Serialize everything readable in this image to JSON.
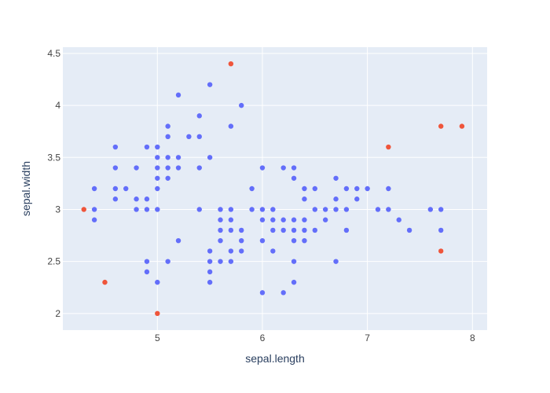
{
  "colors": {
    "plot_background": "#e5ecf6",
    "grid": "#ffffff",
    "inlier": "#636efa",
    "outlier": "#ef553b"
  },
  "chart_data": {
    "type": "scatter",
    "xlabel": "sepal.length",
    "ylabel": "sepal.width",
    "xlim": [
      4.1,
      8.14
    ],
    "ylim": [
      1.84,
      4.56
    ],
    "xticks": [
      5,
      6,
      7,
      8
    ],
    "yticks": [
      2,
      2.5,
      3,
      3.5,
      4,
      4.5
    ],
    "grid": true,
    "legend": "none",
    "series": [
      {
        "color": "#636efa",
        "points": [
          [
            4.4,
            3.2
          ],
          [
            4.4,
            3.0
          ],
          [
            4.4,
            2.9
          ],
          [
            4.6,
            3.6
          ],
          [
            4.6,
            3.4
          ],
          [
            4.6,
            3.2
          ],
          [
            4.6,
            3.1
          ],
          [
            4.7,
            3.2
          ],
          [
            4.8,
            3.4
          ],
          [
            4.8,
            3.1
          ],
          [
            4.8,
            3.0
          ],
          [
            4.9,
            3.6
          ],
          [
            4.9,
            3.1
          ],
          [
            4.9,
            3.0
          ],
          [
            4.9,
            2.5
          ],
          [
            4.9,
            2.4
          ],
          [
            5.0,
            3.6
          ],
          [
            5.0,
            3.5
          ],
          [
            5.0,
            3.4
          ],
          [
            5.0,
            3.3
          ],
          [
            5.0,
            3.2
          ],
          [
            5.0,
            3.0
          ],
          [
            5.0,
            2.3
          ],
          [
            5.1,
            3.8
          ],
          [
            5.1,
            3.7
          ],
          [
            5.1,
            3.5
          ],
          [
            5.1,
            3.4
          ],
          [
            5.1,
            3.3
          ],
          [
            5.1,
            2.5
          ],
          [
            5.2,
            4.1
          ],
          [
            5.2,
            3.5
          ],
          [
            5.2,
            3.4
          ],
          [
            5.2,
            2.7
          ],
          [
            5.3,
            3.7
          ],
          [
            5.4,
            3.9
          ],
          [
            5.4,
            3.7
          ],
          [
            5.4,
            3.4
          ],
          [
            5.4,
            3.0
          ],
          [
            5.5,
            4.2
          ],
          [
            5.5,
            3.5
          ],
          [
            5.5,
            2.6
          ],
          [
            5.5,
            2.5
          ],
          [
            5.5,
            2.4
          ],
          [
            5.5,
            2.3
          ],
          [
            5.6,
            3.0
          ],
          [
            5.6,
            2.9
          ],
          [
            5.6,
            2.8
          ],
          [
            5.6,
            2.7
          ],
          [
            5.6,
            2.5
          ],
          [
            5.7,
            3.8
          ],
          [
            5.7,
            3.0
          ],
          [
            5.7,
            2.9
          ],
          [
            5.7,
            2.8
          ],
          [
            5.7,
            2.6
          ],
          [
            5.7,
            2.5
          ],
          [
            5.8,
            4.0
          ],
          [
            5.8,
            2.8
          ],
          [
            5.8,
            2.7
          ],
          [
            5.8,
            2.6
          ],
          [
            5.9,
            3.2
          ],
          [
            5.9,
            3.0
          ],
          [
            6.0,
            3.4
          ],
          [
            6.0,
            3.0
          ],
          [
            6.0,
            2.9
          ],
          [
            6.0,
            2.7
          ],
          [
            6.0,
            2.2
          ],
          [
            6.1,
            3.0
          ],
          [
            6.1,
            2.9
          ],
          [
            6.1,
            2.8
          ],
          [
            6.1,
            2.6
          ],
          [
            6.2,
            3.4
          ],
          [
            6.2,
            2.9
          ],
          [
            6.2,
            2.8
          ],
          [
            6.2,
            2.2
          ],
          [
            6.3,
            3.4
          ],
          [
            6.3,
            3.3
          ],
          [
            6.3,
            2.9
          ],
          [
            6.3,
            2.8
          ],
          [
            6.3,
            2.7
          ],
          [
            6.3,
            2.5
          ],
          [
            6.3,
            2.3
          ],
          [
            6.4,
            3.2
          ],
          [
            6.4,
            3.1
          ],
          [
            6.4,
            2.9
          ],
          [
            6.4,
            2.8
          ],
          [
            6.4,
            2.7
          ],
          [
            6.5,
            3.2
          ],
          [
            6.5,
            3.0
          ],
          [
            6.5,
            2.8
          ],
          [
            6.6,
            3.0
          ],
          [
            6.6,
            2.9
          ],
          [
            6.7,
            3.3
          ],
          [
            6.7,
            3.1
          ],
          [
            6.7,
            3.0
          ],
          [
            6.7,
            2.5
          ],
          [
            6.8,
            3.2
          ],
          [
            6.8,
            3.0
          ],
          [
            6.8,
            2.8
          ],
          [
            6.9,
            3.2
          ],
          [
            6.9,
            3.1
          ],
          [
            7.0,
            3.2
          ],
          [
            7.1,
            3.0
          ],
          [
            7.2,
            3.2
          ],
          [
            7.2,
            3.0
          ],
          [
            7.3,
            2.9
          ],
          [
            7.4,
            2.8
          ],
          [
            7.6,
            3.0
          ],
          [
            7.7,
            3.0
          ],
          [
            7.7,
            2.8
          ]
        ]
      },
      {
        "color": "#ef553b",
        "points": [
          [
            5.7,
            4.4
          ],
          [
            4.3,
            3.0
          ],
          [
            4.5,
            2.3
          ],
          [
            5.0,
            2.0
          ],
          [
            7.2,
            3.6
          ],
          [
            7.7,
            3.8
          ],
          [
            7.9,
            3.8
          ],
          [
            7.7,
            2.6
          ]
        ]
      }
    ]
  }
}
